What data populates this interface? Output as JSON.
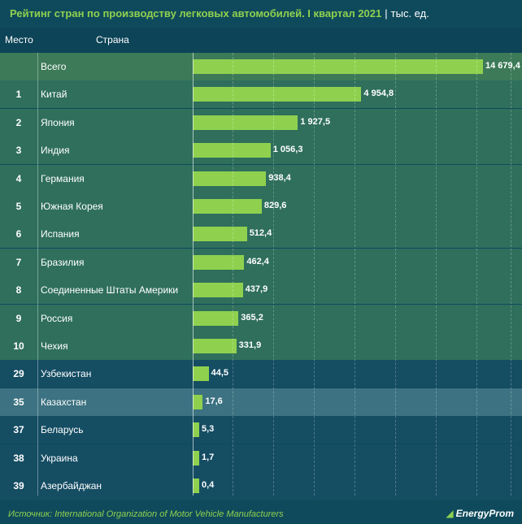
{
  "title": {
    "main": "Рейтинг стран по производству легковых автомобилей. I квартал 2021",
    "separator": "|",
    "unit": "тыс. ед."
  },
  "header": {
    "rank": "Место",
    "country": "Страна"
  },
  "colors": {
    "background": "#0f4a5c",
    "row_total": "#3c7a58",
    "row_top": "#2f6f5c",
    "row_cis": "#154d63",
    "row_kz": "#3c7281",
    "bar": "#8fd14f",
    "title_accent": "#8fd14f"
  },
  "chart_data": {
    "type": "bar",
    "orientation": "horizontal",
    "title": "Рейтинг стран по производству легковых автомобилей. I квартал 2021",
    "unit": "тыс. ед.",
    "categories": [
      "Всего",
      "Китай",
      "Япония",
      "Индия",
      "Германия",
      "Южная Корея",
      "Испания",
      "Бразилия",
      "Соединенные Штаты Америки",
      "Россия",
      "Чехия",
      "Узбекистан",
      "Казахстан",
      "Беларусь",
      "Украина",
      "Азербайджан"
    ],
    "ranks": [
      "",
      "1",
      "2",
      "3",
      "4",
      "5",
      "6",
      "7",
      "8",
      "9",
      "10",
      "29",
      "35",
      "37",
      "38",
      "39"
    ],
    "values": [
      14679.4,
      4954.8,
      1927.5,
      1056.3,
      938.4,
      829.6,
      512.4,
      462.4,
      437.9,
      365.2,
      331.9,
      44.5,
      17.6,
      5.3,
      1.7,
      0.4
    ],
    "value_labels": [
      "14 679,4",
      "4 954,8",
      "1 927,5",
      "1 056,3",
      "938,4",
      "829,6",
      "512,4",
      "462,4",
      "437,9",
      "365,2",
      "331,9",
      "44,5",
      "17,6",
      "5,3",
      "1,7",
      "0,4"
    ],
    "scale": "non-linear",
    "grid": true
  },
  "footer": {
    "source": "Источник: International Organization of Motor Vehicle Manufacturers",
    "logo": "EnergyProm"
  }
}
